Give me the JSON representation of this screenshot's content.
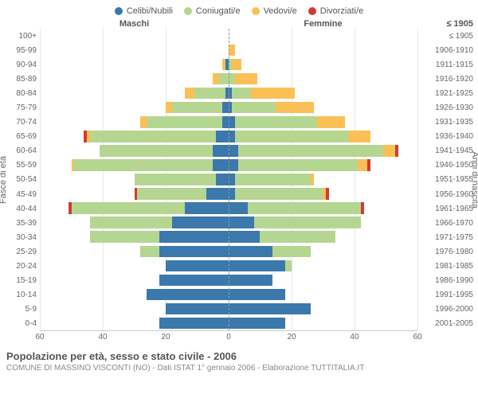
{
  "legend": [
    {
      "label": "Celibi/Nubili",
      "color": "#3b78ab"
    },
    {
      "label": "Coniugati/e",
      "color": "#b4d690"
    },
    {
      "label": "Vedovi/e",
      "color": "#fbc055"
    },
    {
      "label": "Divorziati/e",
      "color": "#d23a33"
    }
  ],
  "headers": {
    "male": "Maschi",
    "female": "Femmine",
    "right_hint": "≤ 1905"
  },
  "axis_labels": {
    "left": "Fasce di età",
    "right": "Anni di nascita"
  },
  "xaxis": {
    "max": 60,
    "ticks": [
      60,
      40,
      20,
      0,
      20,
      40,
      60
    ]
  },
  "grid_color": "#e6e6e6",
  "background": "#ffffff",
  "title": "Popolazione per età, sesso e stato civile - 2006",
  "subtitle": "COMUNE DI MASSINO VISCONTI (NO) - Dati ISTAT 1° gennaio 2006 - Elaborazione TUTTITALIA.IT",
  "rows": [
    {
      "age": "100+",
      "birth": "≤ 1905",
      "m": {
        "c": 0,
        "k": 0,
        "v": 0,
        "d": 0
      },
      "f": {
        "c": 0,
        "k": 0,
        "v": 0,
        "d": 0
      }
    },
    {
      "age": "95-99",
      "birth": "1906-1910",
      "m": {
        "c": 0,
        "k": 0,
        "v": 0,
        "d": 0
      },
      "f": {
        "c": 0,
        "k": 0,
        "v": 2,
        "d": 0
      }
    },
    {
      "age": "90-94",
      "birth": "1911-1915",
      "m": {
        "c": 1,
        "k": 0,
        "v": 1,
        "d": 0
      },
      "f": {
        "c": 0,
        "k": 1,
        "v": 3,
        "d": 0
      }
    },
    {
      "age": "85-89",
      "birth": "1916-1920",
      "m": {
        "c": 0,
        "k": 3,
        "v": 2,
        "d": 0
      },
      "f": {
        "c": 0,
        "k": 2,
        "v": 7,
        "d": 0
      }
    },
    {
      "age": "80-84",
      "birth": "1921-1925",
      "m": {
        "c": 1,
        "k": 10,
        "v": 3,
        "d": 0
      },
      "f": {
        "c": 1,
        "k": 6,
        "v": 14,
        "d": 0
      }
    },
    {
      "age": "75-79",
      "birth": "1926-1930",
      "m": {
        "c": 2,
        "k": 16,
        "v": 2,
        "d": 0
      },
      "f": {
        "c": 1,
        "k": 14,
        "v": 12,
        "d": 0
      }
    },
    {
      "age": "70-74",
      "birth": "1931-1935",
      "m": {
        "c": 2,
        "k": 24,
        "v": 2,
        "d": 0
      },
      "f": {
        "c": 2,
        "k": 26,
        "v": 9,
        "d": 0
      }
    },
    {
      "age": "65-69",
      "birth": "1936-1940",
      "m": {
        "c": 4,
        "k": 40,
        "v": 1,
        "d": 1
      },
      "f": {
        "c": 2,
        "k": 36,
        "v": 7,
        "d": 0
      }
    },
    {
      "age": "60-64",
      "birth": "1941-1945",
      "m": {
        "c": 5,
        "k": 36,
        "v": 0,
        "d": 0
      },
      "f": {
        "c": 3,
        "k": 46,
        "v": 4,
        "d": 1
      }
    },
    {
      "age": "55-59",
      "birth": "1946-1950",
      "m": {
        "c": 5,
        "k": 44,
        "v": 1,
        "d": 0
      },
      "f": {
        "c": 3,
        "k": 38,
        "v": 3,
        "d": 1
      }
    },
    {
      "age": "50-54",
      "birth": "1951-1955",
      "m": {
        "c": 4,
        "k": 26,
        "v": 0,
        "d": 0
      },
      "f": {
        "c": 2,
        "k": 24,
        "v": 1,
        "d": 0
      }
    },
    {
      "age": "45-49",
      "birth": "1956-1960",
      "m": {
        "c": 7,
        "k": 22,
        "v": 0,
        "d": 1
      },
      "f": {
        "c": 2,
        "k": 28,
        "v": 1,
        "d": 1
      }
    },
    {
      "age": "40-44",
      "birth": "1961-1965",
      "m": {
        "c": 14,
        "k": 36,
        "v": 0,
        "d": 1
      },
      "f": {
        "c": 6,
        "k": 36,
        "v": 0,
        "d": 1
      }
    },
    {
      "age": "35-39",
      "birth": "1966-1970",
      "m": {
        "c": 18,
        "k": 26,
        "v": 0,
        "d": 0
      },
      "f": {
        "c": 8,
        "k": 34,
        "v": 0,
        "d": 0
      }
    },
    {
      "age": "30-34",
      "birth": "1971-1975",
      "m": {
        "c": 22,
        "k": 22,
        "v": 0,
        "d": 0
      },
      "f": {
        "c": 10,
        "k": 24,
        "v": 0,
        "d": 0
      }
    },
    {
      "age": "25-29",
      "birth": "1976-1980",
      "m": {
        "c": 22,
        "k": 6,
        "v": 0,
        "d": 0
      },
      "f": {
        "c": 14,
        "k": 12,
        "v": 0,
        "d": 0
      }
    },
    {
      "age": "20-24",
      "birth": "1981-1985",
      "m": {
        "c": 20,
        "k": 0,
        "v": 0,
        "d": 0
      },
      "f": {
        "c": 18,
        "k": 2,
        "v": 0,
        "d": 0
      }
    },
    {
      "age": "15-19",
      "birth": "1986-1990",
      "m": {
        "c": 22,
        "k": 0,
        "v": 0,
        "d": 0
      },
      "f": {
        "c": 14,
        "k": 0,
        "v": 0,
        "d": 0
      }
    },
    {
      "age": "10-14",
      "birth": "1991-1995",
      "m": {
        "c": 26,
        "k": 0,
        "v": 0,
        "d": 0
      },
      "f": {
        "c": 18,
        "k": 0,
        "v": 0,
        "d": 0
      }
    },
    {
      "age": "5-9",
      "birth": "1996-2000",
      "m": {
        "c": 20,
        "k": 0,
        "v": 0,
        "d": 0
      },
      "f": {
        "c": 26,
        "k": 0,
        "v": 0,
        "d": 0
      }
    },
    {
      "age": "0-4",
      "birth": "2001-2005",
      "m": {
        "c": 22,
        "k": 0,
        "v": 0,
        "d": 0
      },
      "f": {
        "c": 18,
        "k": 0,
        "v": 0,
        "d": 0
      }
    }
  ]
}
